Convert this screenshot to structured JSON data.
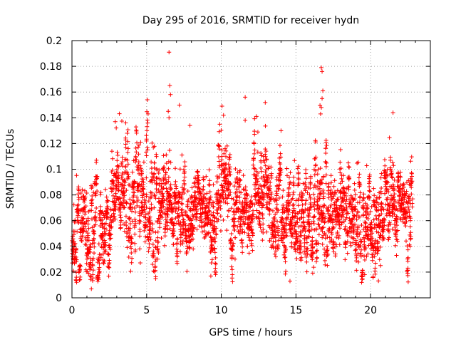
{
  "chart_data": {
    "type": "scatter",
    "title": "Day 295 of 2016, SRMTID for receiver hydn",
    "xlabel": "GPS time / hours",
    "ylabel": "SRMTID / TECUs",
    "xlim": [
      0,
      24
    ],
    "ylim": [
      0,
      0.2
    ],
    "xticks": [
      0,
      5,
      10,
      15,
      20
    ],
    "xtick_labels": [
      "0",
      "5",
      "10",
      "15",
      "20"
    ],
    "yticks": [
      0,
      0.02,
      0.04,
      0.06,
      0.08,
      0.1,
      0.12,
      0.14,
      0.16,
      0.18,
      0.2
    ],
    "ytick_labels": [
      "0",
      "0.02",
      "0.04",
      "0.06",
      "0.08",
      "0.1",
      "0.12",
      "0.14",
      "0.16",
      "0.18",
      "0.2"
    ],
    "grid": true,
    "marker": "+",
    "color": "#ff0000",
    "series": [
      {
        "name": "SRMTID",
        "profile_hours": [
          0,
          0.5,
          1,
          1.5,
          2,
          2.5,
          3,
          3.5,
          4,
          4.5,
          5,
          5.5,
          6,
          6.5,
          7,
          7.5,
          8,
          8.5,
          9,
          9.5,
          10,
          10.5,
          11,
          11.5,
          12,
          12.5,
          13,
          13.5,
          14,
          14.5,
          15,
          15.5,
          16,
          16.5,
          17,
          17.5,
          18,
          18.5,
          19,
          19.5,
          20,
          20.5,
          21,
          21.5,
          22,
          22.5,
          22.8
        ],
        "profile_median": [
          0.05,
          0.045,
          0.055,
          0.055,
          0.05,
          0.05,
          0.075,
          0.08,
          0.075,
          0.075,
          0.07,
          0.075,
          0.075,
          0.07,
          0.065,
          0.06,
          0.065,
          0.07,
          0.06,
          0.06,
          0.07,
          0.075,
          0.065,
          0.065,
          0.07,
          0.07,
          0.07,
          0.065,
          0.065,
          0.06,
          0.055,
          0.06,
          0.065,
          0.065,
          0.065,
          0.065,
          0.06,
          0.06,
          0.055,
          0.05,
          0.055,
          0.06,
          0.065,
          0.065,
          0.06,
          0.06,
          0.06
        ],
        "profile_spread": [
          0.025,
          0.022,
          0.025,
          0.02,
          0.02,
          0.02,
          0.025,
          0.025,
          0.025,
          0.025,
          0.025,
          0.025,
          0.022,
          0.025,
          0.02,
          0.02,
          0.022,
          0.022,
          0.02,
          0.02,
          0.025,
          0.025,
          0.022,
          0.022,
          0.022,
          0.025,
          0.025,
          0.022,
          0.022,
          0.022,
          0.02,
          0.02,
          0.022,
          0.022,
          0.025,
          0.022,
          0.02,
          0.02,
          0.02,
          0.02,
          0.02,
          0.022,
          0.022,
          0.022,
          0.022,
          0.02,
          0.02
        ],
        "n_points": 3400,
        "x_range": [
          0,
          22.8
        ],
        "outliers": [
          {
            "x": 6.5,
            "y": 0.191
          },
          {
            "x": 6.55,
            "y": 0.165
          },
          {
            "x": 6.6,
            "y": 0.158
          },
          {
            "x": 6.45,
            "y": 0.145
          },
          {
            "x": 6.5,
            "y": 0.14
          },
          {
            "x": 5.05,
            "y": 0.154
          },
          {
            "x": 5.1,
            "y": 0.143
          },
          {
            "x": 16.7,
            "y": 0.179
          },
          {
            "x": 16.75,
            "y": 0.176
          },
          {
            "x": 16.8,
            "y": 0.161
          },
          {
            "x": 16.75,
            "y": 0.155
          },
          {
            "x": 16.7,
            "y": 0.148
          },
          {
            "x": 16.65,
            "y": 0.143
          },
          {
            "x": 11.6,
            "y": 0.156
          },
          {
            "x": 10.05,
            "y": 0.149
          },
          {
            "x": 10.15,
            "y": 0.142
          },
          {
            "x": 21.5,
            "y": 0.144
          },
          {
            "x": 11.6,
            "y": 0.138
          },
          {
            "x": 2.9,
            "y": 0.137
          },
          {
            "x": 3.6,
            "y": 0.136
          },
          {
            "x": 3.7,
            "y": 0.128
          },
          {
            "x": 9.9,
            "y": 0.135
          },
          {
            "x": 7.9,
            "y": 0.134
          },
          {
            "x": 14.0,
            "y": 0.13
          },
          {
            "x": 1.3,
            "y": 0.007
          },
          {
            "x": 14.6,
            "y": 0.013
          },
          {
            "x": 0.3,
            "y": 0.016
          },
          {
            "x": 9.3,
            "y": 0.017
          },
          {
            "x": 19.6,
            "y": 0.018
          }
        ]
      }
    ]
  }
}
